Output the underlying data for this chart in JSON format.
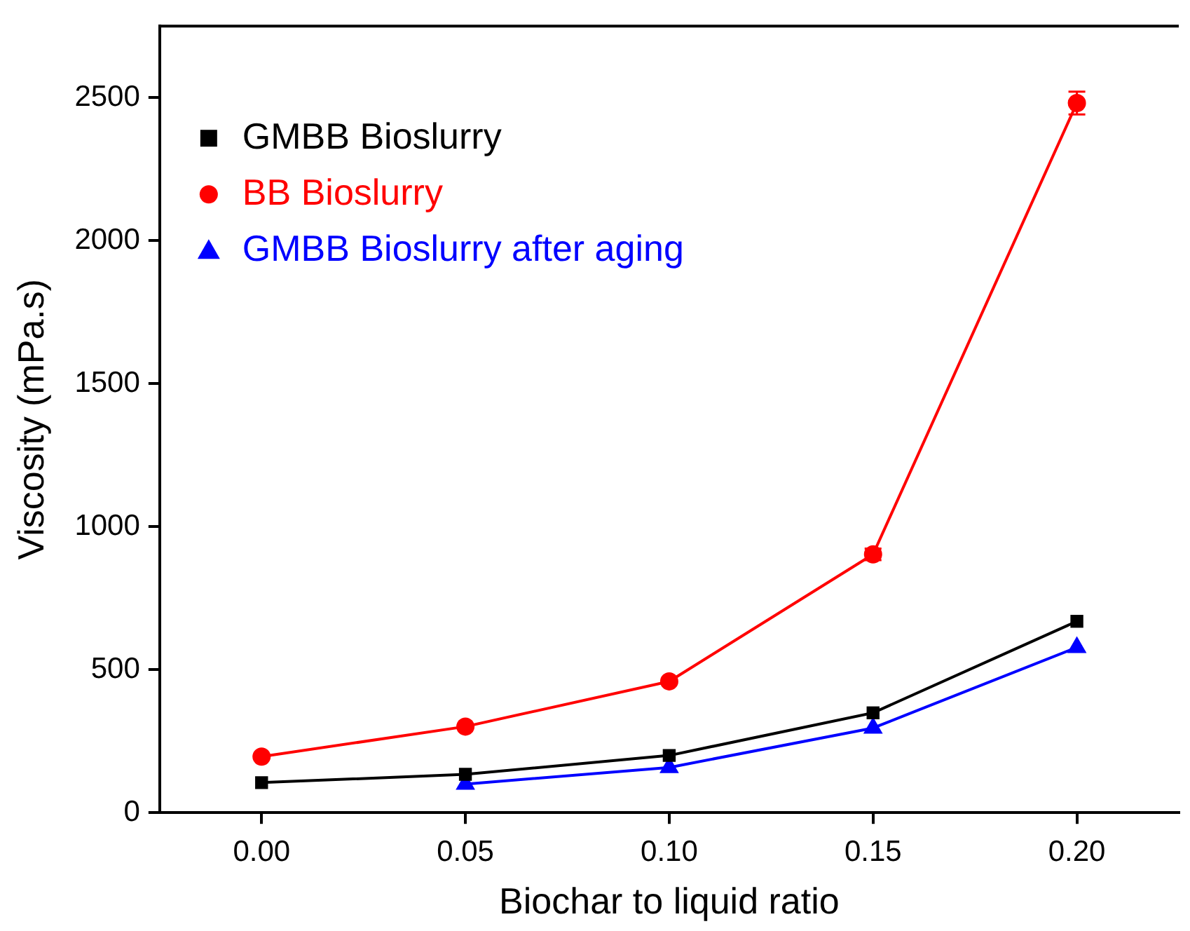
{
  "chart_data": {
    "type": "line",
    "xlabel": "Biochar to liquid ratio",
    "ylabel": "Viscosity (mPa.s)",
    "xlim": [
      -0.025,
      0.225
    ],
    "xticks": [
      {
        "value": 0,
        "label": "0.00"
      },
      {
        "value": 0.05,
        "label": "0.05"
      },
      {
        "value": 0.1,
        "label": "0.10"
      },
      {
        "value": 0.15,
        "label": "0.15"
      },
      {
        "value": 0.2,
        "label": "0.20"
      }
    ],
    "ylim": [
      0,
      2750
    ],
    "yticks": [
      0,
      500,
      1000,
      1500,
      2000,
      2500
    ],
    "legend": "top left",
    "grid": false,
    "line_style": "solid",
    "series": [
      {
        "name": "GMBB Bioslurry",
        "color": "#000000",
        "marker": "square",
        "x": [
          0,
          0.05,
          0.1,
          0.15,
          0.2
        ],
        "values": [
          105,
          134,
          200,
          349,
          669
        ]
      },
      {
        "name": "BB Bioslurry",
        "color": "#ff0000",
        "marker": "circle",
        "x": [
          0,
          0.05,
          0.1,
          0.15,
          0.2
        ],
        "values": [
          196,
          301,
          459,
          903,
          2481
        ],
        "errors": [
          null,
          null,
          null,
          20,
          40
        ]
      },
      {
        "name": "GMBB Bioslurry after aging",
        "color": "#0000ff",
        "marker": "triangle",
        "x": [
          0.05,
          0.1,
          0.15,
          0.2
        ],
        "values": [
          100,
          158,
          296,
          578
        ]
      }
    ]
  }
}
